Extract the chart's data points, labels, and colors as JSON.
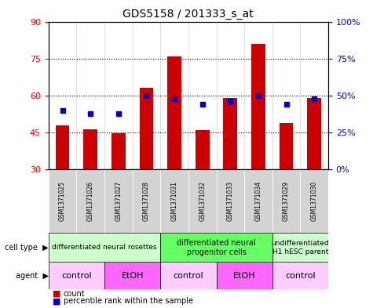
{
  "title": "GDS5158 / 201333_s_at",
  "samples": [
    "GSM1371025",
    "GSM1371026",
    "GSM1371027",
    "GSM1371028",
    "GSM1371031",
    "GSM1371032",
    "GSM1371033",
    "GSM1371034",
    "GSM1371029",
    "GSM1371030"
  ],
  "counts": [
    48.0,
    46.2,
    44.8,
    63.0,
    76.0,
    46.0,
    59.0,
    81.0,
    49.0,
    59.0
  ],
  "percentiles": [
    40,
    38,
    38,
    50,
    48,
    44,
    46,
    50,
    44,
    48
  ],
  "ylim_left": [
    30,
    90
  ],
  "ylim_right": [
    0,
    100
  ],
  "yticks_left": [
    30,
    45,
    60,
    75,
    90
  ],
  "yticks_right": [
    0,
    25,
    50,
    75,
    100
  ],
  "ytick_labels_right": [
    "0%",
    "25%",
    "50%",
    "75%",
    "100%"
  ],
  "bar_color": "#cc0000",
  "dot_color": "#0000cc",
  "bar_width": 0.5,
  "cell_type_groups": [
    {
      "label": "differentiated neural rosettes",
      "start": 0,
      "end": 3,
      "color": "#ccffcc"
    },
    {
      "label": "differentiated neural\nprogenitor cells",
      "start": 4,
      "end": 7,
      "color": "#66ff66"
    },
    {
      "label": "undifferentiated\nH1 hESC parent",
      "start": 8,
      "end": 9,
      "color": "#ccffcc"
    }
  ],
  "agent_groups": [
    {
      "label": "control",
      "start": 0,
      "end": 1,
      "color": "#ffccff"
    },
    {
      "label": "EtOH",
      "start": 2,
      "end": 3,
      "color": "#ff66ff"
    },
    {
      "label": "control",
      "start": 4,
      "end": 5,
      "color": "#ffccff"
    },
    {
      "label": "EtOH",
      "start": 6,
      "end": 7,
      "color": "#ff66ff"
    },
    {
      "label": "control",
      "start": 8,
      "end": 9,
      "color": "#ffccff"
    }
  ],
  "cell_type_label": "cell type",
  "agent_label": "agent",
  "legend_count": "count",
  "legend_percentile": "percentile rank within the sample",
  "grid_color": "#000000",
  "background_color": "#ffffff",
  "plot_bg_color": "#ffffff"
}
